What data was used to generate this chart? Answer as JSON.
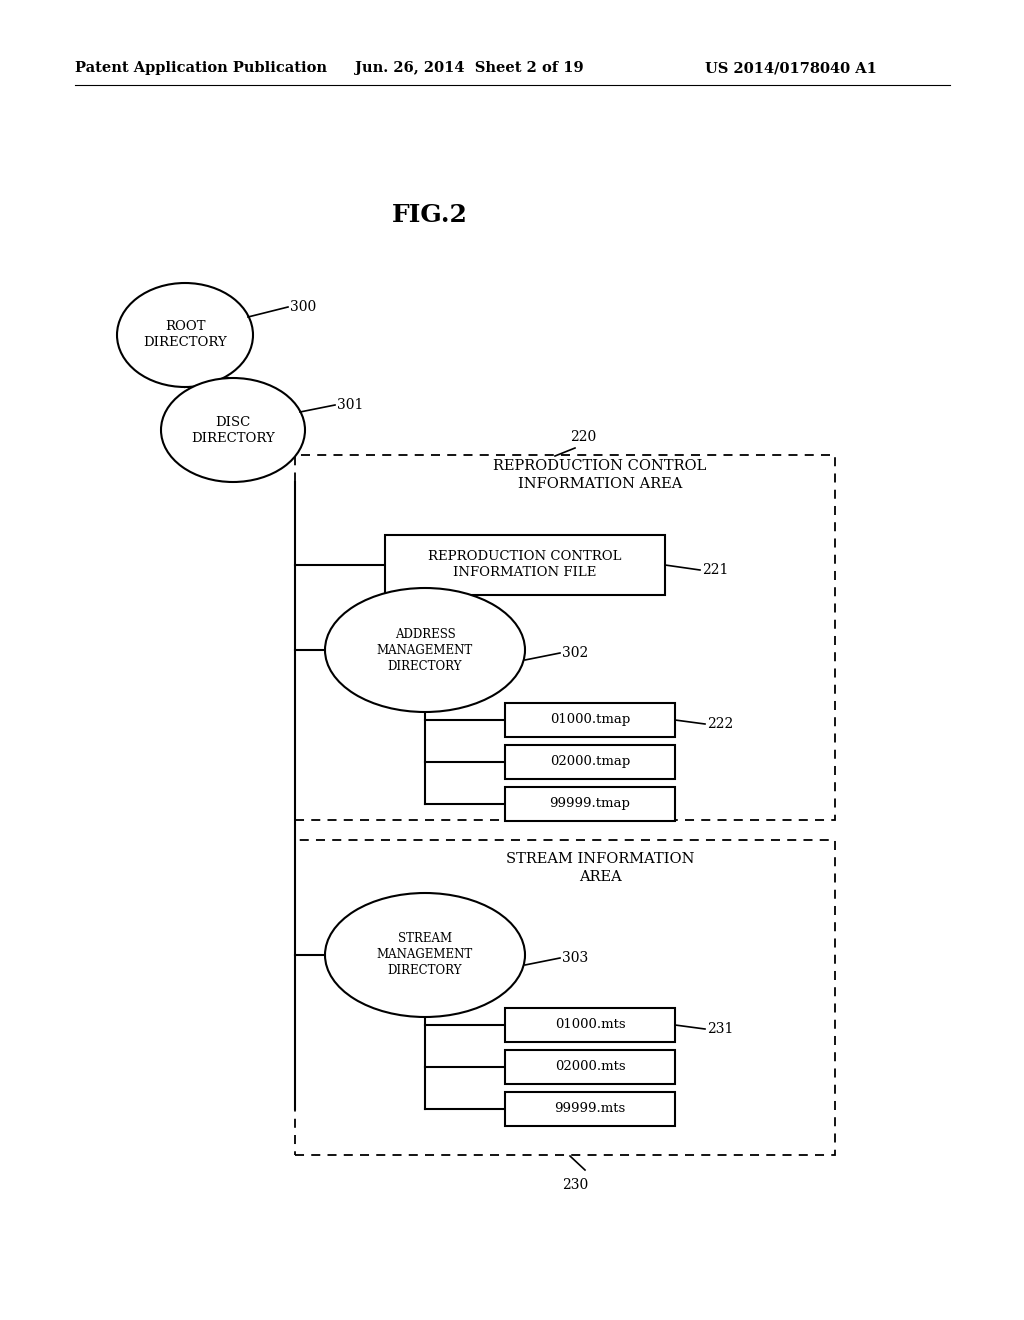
{
  "bg_color": "#ffffff",
  "header_left": "Patent Application Publication",
  "header_mid": "Jun. 26, 2014  Sheet 2 of 19",
  "header_right": "US 2014/0178040 A1",
  "fig_title": "FIG.2"
}
